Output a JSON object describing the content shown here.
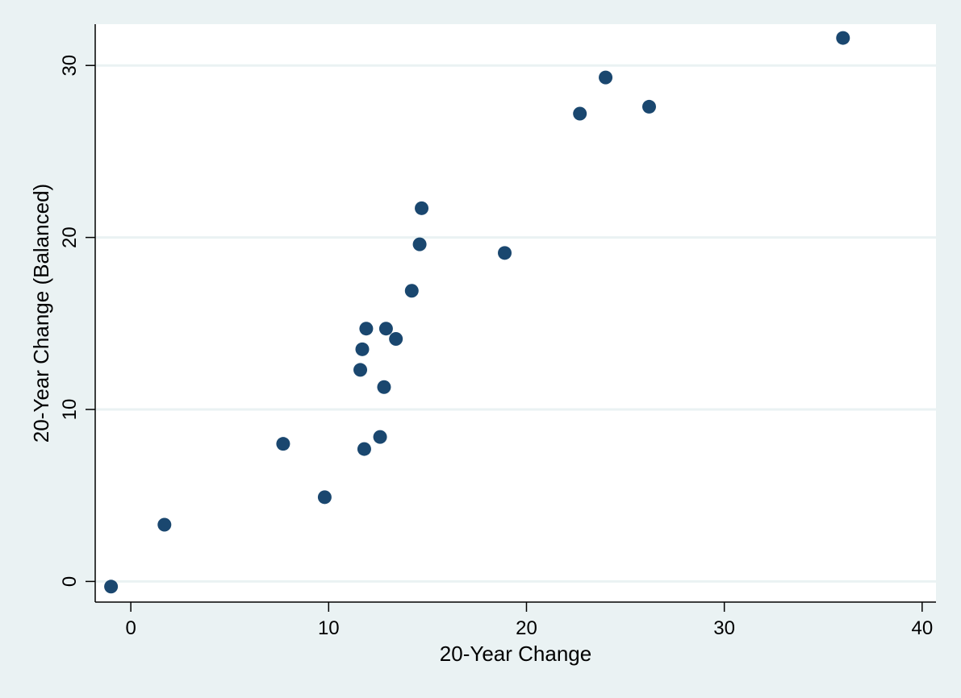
{
  "chart_data": {
    "type": "scatter",
    "title": "",
    "xlabel": "20-Year Change",
    "ylabel": "20-Year Change (Balanced)",
    "xlim": [
      -1.8,
      40.7
    ],
    "ylim": [
      -1.2,
      32.4
    ],
    "xticks": [
      0,
      10,
      20,
      30,
      40
    ],
    "yticks": [
      0,
      10,
      20,
      30
    ],
    "xtick_labels": [
      "0",
      "10",
      "20",
      "30",
      "40"
    ],
    "ytick_labels": [
      "0",
      "10",
      "20",
      "30"
    ],
    "grid": "horizontal",
    "marker_color": "#1a476f",
    "background_color": "#eaf2f3",
    "plot_background_color": "#ffffff",
    "gridline_color": "#eaf2f3",
    "points": [
      {
        "x": -1.0,
        "y": -0.3
      },
      {
        "x": 1.7,
        "y": 3.3
      },
      {
        "x": 7.7,
        "y": 8.0
      },
      {
        "x": 9.8,
        "y": 4.9
      },
      {
        "x": 11.6,
        "y": 12.3
      },
      {
        "x": 11.7,
        "y": 13.5
      },
      {
        "x": 11.8,
        "y": 7.7
      },
      {
        "x": 11.9,
        "y": 14.7
      },
      {
        "x": 12.6,
        "y": 8.4
      },
      {
        "x": 12.8,
        "y": 11.3
      },
      {
        "x": 12.9,
        "y": 14.7
      },
      {
        "x": 13.4,
        "y": 14.1
      },
      {
        "x": 14.2,
        "y": 16.9
      },
      {
        "x": 14.6,
        "y": 19.6
      },
      {
        "x": 14.7,
        "y": 21.7
      },
      {
        "x": 18.9,
        "y": 19.1
      },
      {
        "x": 22.7,
        "y": 27.2
      },
      {
        "x": 24.0,
        "y": 29.3
      },
      {
        "x": 26.2,
        "y": 27.6
      },
      {
        "x": 36.0,
        "y": 31.6
      }
    ]
  }
}
